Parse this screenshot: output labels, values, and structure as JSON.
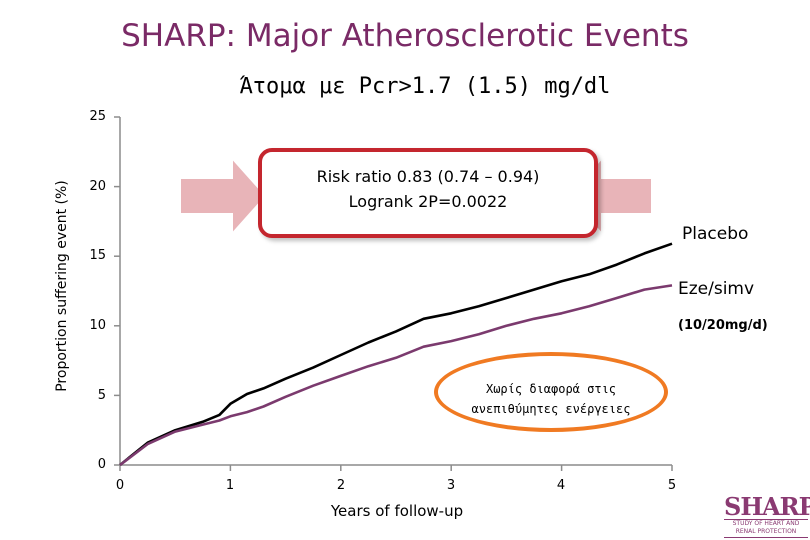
{
  "slide": {
    "title": "SHARP: Major Atherosclerotic Events",
    "subtitle": "Άτομα με Pcr>1.7 (1.5) mg/dl"
  },
  "chart_data": {
    "type": "line",
    "title": "SHARP: Major Atherosclerotic Events",
    "subtitle": "Άτομα με Pcr>1.7 (1.5) mg/dl",
    "xlabel": "Years of follow-up",
    "ylabel": "Proportion suffering event (%)",
    "xlim": [
      0,
      5
    ],
    "ylim": [
      0,
      25
    ],
    "x_ticks": [
      "0",
      "1",
      "2",
      "3",
      "4",
      "5"
    ],
    "y_ticks": [
      "0",
      "5",
      "10",
      "15",
      "20",
      "25"
    ],
    "grid": false,
    "series": [
      {
        "name": "Placebo",
        "color": "#000000",
        "x": [
          0,
          0.25,
          0.5,
          0.75,
          0.9,
          1.0,
          1.15,
          1.3,
          1.5,
          1.75,
          2.0,
          2.25,
          2.5,
          2.75,
          3.0,
          3.25,
          3.5,
          3.75,
          4.0,
          4.25,
          4.5,
          4.75,
          5.0
        ],
        "values": [
          0,
          1.6,
          2.5,
          3.1,
          3.6,
          4.4,
          5.1,
          5.5,
          6.2,
          7.0,
          7.9,
          8.8,
          9.6,
          10.5,
          10.9,
          11.4,
          12.0,
          12.6,
          13.2,
          13.7,
          14.4,
          15.2,
          15.9
        ]
      },
      {
        "name": "Eze/simv",
        "color": "#7b3a6e",
        "x": [
          0,
          0.25,
          0.5,
          0.75,
          0.9,
          1.0,
          1.15,
          1.3,
          1.5,
          1.75,
          2.0,
          2.25,
          2.5,
          2.75,
          3.0,
          3.25,
          3.5,
          3.75,
          4.0,
          4.25,
          4.5,
          4.75,
          5.0
        ],
        "values": [
          0,
          1.5,
          2.4,
          2.9,
          3.2,
          3.5,
          3.8,
          4.2,
          4.9,
          5.7,
          6.4,
          7.1,
          7.7,
          8.5,
          8.9,
          9.4,
          10.0,
          10.5,
          10.9,
          11.4,
          12.0,
          12.6,
          12.9
        ]
      }
    ],
    "series_labels": {
      "placebo": "Placebo",
      "ezesimv": "Eze/simv",
      "ezesimv_dose": "(10/20mg/d)"
    },
    "annotations": {
      "risk_ratio": "Risk ratio 0.83 (0.74 – 0.94)",
      "logrank": "Logrank 2P=0.0022",
      "no_difference_line1": "Χωρίς διαφορά στις",
      "no_difference_line2": "ανεπιθύμητες ενέργειες"
    }
  },
  "logo": {
    "word": "SHARP",
    "tagline1": "STUDY OF HEART AND",
    "tagline2": "RENAL PROTECTION",
    "color": "#8a3a72"
  },
  "colors": {
    "title": "#7a2a66",
    "risk_box_border": "#c4262e",
    "arrow_fill": "#e8b4b8",
    "no_diff_border": "#f07a22"
  }
}
